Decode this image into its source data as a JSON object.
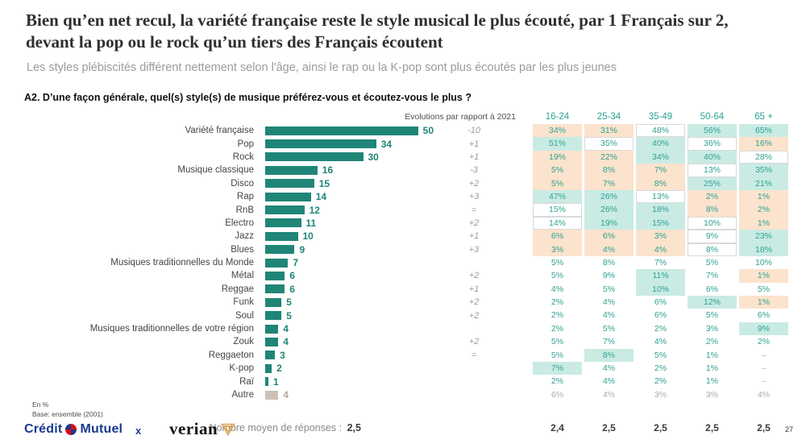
{
  "header": {
    "title_line1": "Bien qu’en net recul, la variété française reste le style musical le plus écouté, par 1 Français sur 2,",
    "title_line2": "devant la pop ou le rock qu’un tiers des Français écoutent",
    "subtitle": "Les styles plébiscités différent nettement selon l'âge, ainsi le rap ou la K-pop sont plus écoutés par les plus jeunes"
  },
  "question": "A2. D’une façon générale, quel(s) style(s) de musique préférez-vous et écoutez-vous le plus ?",
  "chart_data": {
    "type": "bar",
    "orientation": "horizontal",
    "unit": "%",
    "evolutions_header": "Evolutions par rapport à 2021",
    "age_columns": [
      "16-24",
      "25-34",
      "35-49",
      "50-64",
      "65 +"
    ],
    "cell_bg_legend": {
      "p": "peach #fbe3cd (lower than average)",
      "m": "mint #c9ebe4 (higher than average)",
      "b": "white outlined",
      "w": "white",
      "d": "dash",
      "g": "gray text"
    },
    "rows": [
      {
        "label": "Variété française",
        "value": 50,
        "evolution": "-10",
        "cells": [
          [
            "34%",
            "p"
          ],
          [
            "31%",
            "p"
          ],
          [
            "48%",
            "b"
          ],
          [
            "56%",
            "m"
          ],
          [
            "65%",
            "m"
          ]
        ]
      },
      {
        "label": "Pop",
        "value": 34,
        "evolution": "+1",
        "cells": [
          [
            "51%",
            "m"
          ],
          [
            "35%",
            "b"
          ],
          [
            "40%",
            "m"
          ],
          [
            "36%",
            "b"
          ],
          [
            "16%",
            "p"
          ]
        ]
      },
      {
        "label": "Rock",
        "value": 30,
        "evolution": "+1",
        "cells": [
          [
            "19%",
            "p"
          ],
          [
            "22%",
            "p"
          ],
          [
            "34%",
            "m"
          ],
          [
            "40%",
            "m"
          ],
          [
            "28%",
            "b"
          ]
        ]
      },
      {
        "label": "Musique classique",
        "value": 16,
        "evolution": "-3",
        "cells": [
          [
            "5%",
            "p"
          ],
          [
            "8%",
            "p"
          ],
          [
            "7%",
            "p"
          ],
          [
            "13%",
            "b"
          ],
          [
            "35%",
            "m"
          ]
        ]
      },
      {
        "label": "Disco",
        "value": 15,
        "evolution": "+2",
        "cells": [
          [
            "5%",
            "p"
          ],
          [
            "7%",
            "p"
          ],
          [
            "8%",
            "p"
          ],
          [
            "25%",
            "m"
          ],
          [
            "21%",
            "m"
          ]
        ]
      },
      {
        "label": "Rap",
        "value": 14,
        "evolution": "+3",
        "cells": [
          [
            "47%",
            "m"
          ],
          [
            "26%",
            "m"
          ],
          [
            "13%",
            "b"
          ],
          [
            "2%",
            "p"
          ],
          [
            "1%",
            "p"
          ]
        ]
      },
      {
        "label": "RnB",
        "value": 12,
        "evolution": "=",
        "cells": [
          [
            "15%",
            "b"
          ],
          [
            "26%",
            "m"
          ],
          [
            "18%",
            "m"
          ],
          [
            "8%",
            "p"
          ],
          [
            "2%",
            "p"
          ]
        ]
      },
      {
        "label": "Electro",
        "value": 11,
        "evolution": "+2",
        "cells": [
          [
            "14%",
            "b"
          ],
          [
            "19%",
            "m"
          ],
          [
            "15%",
            "m"
          ],
          [
            "10%",
            "b"
          ],
          [
            "1%",
            "p"
          ]
        ]
      },
      {
        "label": "Jazz",
        "value": 10,
        "evolution": "+1",
        "cells": [
          [
            "6%",
            "p"
          ],
          [
            "6%",
            "p"
          ],
          [
            "3%",
            "p"
          ],
          [
            "9%",
            "b"
          ],
          [
            "23%",
            "m"
          ]
        ]
      },
      {
        "label": "Blues",
        "value": 9,
        "evolution": "+3",
        "cells": [
          [
            "3%",
            "p"
          ],
          [
            "4%",
            "p"
          ],
          [
            "4%",
            "p"
          ],
          [
            "8%",
            "b"
          ],
          [
            "18%",
            "m"
          ]
        ]
      },
      {
        "label": "Musiques traditionnelles du Monde",
        "value": 7,
        "evolution": "",
        "cells": [
          [
            "5%",
            "w"
          ],
          [
            "8%",
            "w"
          ],
          [
            "7%",
            "w"
          ],
          [
            "5%",
            "w"
          ],
          [
            "10%",
            "w"
          ]
        ]
      },
      {
        "label": "Métal",
        "value": 6,
        "evolution": "+2",
        "cells": [
          [
            "5%",
            "w"
          ],
          [
            "9%",
            "w"
          ],
          [
            "11%",
            "m"
          ],
          [
            "7%",
            "w"
          ],
          [
            "1%",
            "p"
          ]
        ]
      },
      {
        "label": "Reggae",
        "value": 6,
        "evolution": "+1",
        "cells": [
          [
            "4%",
            "w"
          ],
          [
            "5%",
            "w"
          ],
          [
            "10%",
            "m"
          ],
          [
            "6%",
            "w"
          ],
          [
            "5%",
            "w"
          ]
        ]
      },
      {
        "label": "Funk",
        "value": 5,
        "evolution": "+2",
        "cells": [
          [
            "2%",
            "w"
          ],
          [
            "4%",
            "w"
          ],
          [
            "6%",
            "w"
          ],
          [
            "12%",
            "m"
          ],
          [
            "1%",
            "p"
          ]
        ]
      },
      {
        "label": "Soul",
        "value": 5,
        "evolution": "+2",
        "cells": [
          [
            "2%",
            "w"
          ],
          [
            "4%",
            "w"
          ],
          [
            "6%",
            "w"
          ],
          [
            "5%",
            "w"
          ],
          [
            "6%",
            "w"
          ]
        ]
      },
      {
        "label": "Musiques traditionnelles de votre région",
        "value": 4,
        "evolution": "",
        "cells": [
          [
            "2%",
            "w"
          ],
          [
            "5%",
            "w"
          ],
          [
            "2%",
            "w"
          ],
          [
            "3%",
            "w"
          ],
          [
            "9%",
            "m"
          ]
        ]
      },
      {
        "label": "Zouk",
        "value": 4,
        "evolution": "+2",
        "cells": [
          [
            "5%",
            "w"
          ],
          [
            "7%",
            "w"
          ],
          [
            "4%",
            "w"
          ],
          [
            "2%",
            "w"
          ],
          [
            "2%",
            "w"
          ]
        ]
      },
      {
        "label": "Reggaeton",
        "value": 3,
        "evolution": "=",
        "cells": [
          [
            "5%",
            "w"
          ],
          [
            "8%",
            "m"
          ],
          [
            "5%",
            "w"
          ],
          [
            "1%",
            "w"
          ],
          [
            "–",
            "d"
          ]
        ]
      },
      {
        "label": "K-pop",
        "value": 2,
        "evolution": "",
        "cells": [
          [
            "7%",
            "m"
          ],
          [
            "4%",
            "w"
          ],
          [
            "2%",
            "w"
          ],
          [
            "1%",
            "w"
          ],
          [
            "–",
            "d"
          ]
        ]
      },
      {
        "label": "Raï",
        "value": 1,
        "evolution": "",
        "cells": [
          [
            "2%",
            "w"
          ],
          [
            "4%",
            "w"
          ],
          [
            "2%",
            "w"
          ],
          [
            "1%",
            "w"
          ],
          [
            "–",
            "d"
          ]
        ]
      },
      {
        "label": "Autre",
        "value": 4,
        "evolution": "",
        "muted": true,
        "cells": [
          [
            "6%",
            "g"
          ],
          [
            "4%",
            "g"
          ],
          [
            "3%",
            "g"
          ],
          [
            "3%",
            "g"
          ],
          [
            "4%",
            "g"
          ]
        ]
      }
    ],
    "means_label": "Nombre moyen de réponses :",
    "means_value": "2,5",
    "age_means": [
      "2,4",
      "2,5",
      "2,5",
      "2,5",
      "2,5"
    ],
    "colors": {
      "bar_teal": "#1f8577",
      "peach": "#fbe3cd",
      "mint": "#c9ebe4",
      "muted_bar": "#cdc0b6",
      "cell_text": "#2ea192"
    }
  },
  "footnote": {
    "line1": "En %",
    "line2": "Base: ensemble (2001)"
  },
  "footer": {
    "brand1_part1": "Crédit",
    "brand1_part2": "Mutuel",
    "separator": "x",
    "brand2": "verian",
    "page_number": "27"
  }
}
